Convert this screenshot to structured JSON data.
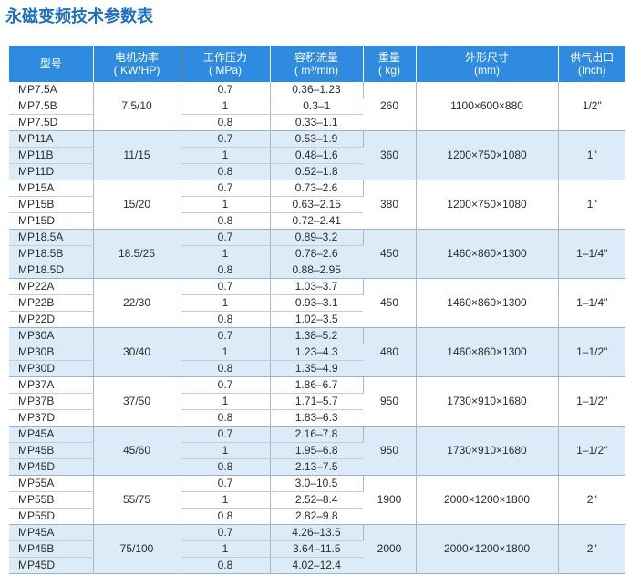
{
  "title": "永磁变频技术参数表",
  "colors": {
    "title": "#1e6fc0",
    "header_bg": "#2e8be0",
    "shade": "#dbebf8"
  },
  "headers": {
    "model": [
      "型号"
    ],
    "power": [
      "电机功率",
      "( KW/HP)"
    ],
    "pressure": [
      "工作压力",
      "( MPa)"
    ],
    "flow": [
      "容积流量",
      "( m³/min)"
    ],
    "weight": [
      "重量",
      "( kg)"
    ],
    "dimension": [
      "外形尺寸",
      "(mm)"
    ],
    "outlet": [
      "供气出口",
      "(Inch)"
    ]
  },
  "groups": [
    {
      "power": "7.5/10",
      "weight": "260",
      "dimension": "1100×600×880",
      "outlet": "1/2\"",
      "shaded": false,
      "rows": [
        {
          "model": "MP7.5A",
          "pressure": "0.7",
          "flow": "0.36–1.23"
        },
        {
          "model": "MP7.5B",
          "pressure": "1",
          "flow": "0.3–1"
        },
        {
          "model": "MP7.5D",
          "pressure": "0.8",
          "flow": "0.33–1.1"
        }
      ]
    },
    {
      "power": "11/15",
      "weight": "360",
      "dimension": "1200×750×1080",
      "outlet": "1\"",
      "shaded": true,
      "rows": [
        {
          "model": "MP11A",
          "pressure": "0.7",
          "flow": "0.53–1.9"
        },
        {
          "model": "MP11B",
          "pressure": "1",
          "flow": "0.48–1.6"
        },
        {
          "model": "MP11D",
          "pressure": "0.8",
          "flow": "0.52–1.8"
        }
      ]
    },
    {
      "power": "15/20",
      "weight": "380",
      "dimension": "1200×750×1080",
      "outlet": "1\"",
      "shaded": false,
      "rows": [
        {
          "model": "MP15A",
          "pressure": "0.7",
          "flow": "0.73–2.6"
        },
        {
          "model": "MP15B",
          "pressure": "1",
          "flow": "0.63–2.15"
        },
        {
          "model": "MP15D",
          "pressure": "0.8",
          "flow": "0.72–2.41"
        }
      ]
    },
    {
      "power": "18.5/25",
      "weight": "450",
      "dimension": "1460×860×1300",
      "outlet": "1–1/4\"",
      "shaded": true,
      "rows": [
        {
          "model": "MP18.5A",
          "pressure": "0.7",
          "flow": "0.89–3.2"
        },
        {
          "model": "MP18.5B",
          "pressure": "1",
          "flow": "0.78–2.6"
        },
        {
          "model": "MP18.5D",
          "pressure": "0.8",
          "flow": "0.88–2.95"
        }
      ]
    },
    {
      "power": "22/30",
      "weight": "450",
      "dimension": "1460×860×1300",
      "outlet": "1–1/4\"",
      "shaded": false,
      "rows": [
        {
          "model": "MP22A",
          "pressure": "0.7",
          "flow": "1.03–3.7"
        },
        {
          "model": "MP22B",
          "pressure": "1",
          "flow": "0.93–3.1"
        },
        {
          "model": "MP22D",
          "pressure": "0.8",
          "flow": "1.02–3.5"
        }
      ]
    },
    {
      "power": "30/40",
      "weight": "480",
      "dimension": "1460×860×1300",
      "outlet": "1–1/2\"",
      "shaded": true,
      "rows": [
        {
          "model": "MP30A",
          "pressure": "0.7",
          "flow": "1.38–5.2"
        },
        {
          "model": "MP30B",
          "pressure": "1",
          "flow": "1.23–4.3"
        },
        {
          "model": "MP30D",
          "pressure": "0.8",
          "flow": "1.35–4.9"
        }
      ]
    },
    {
      "power": "37/50",
      "weight": "950",
      "dimension": "1730×910×1680",
      "outlet": "1–1/2\"",
      "shaded": false,
      "rows": [
        {
          "model": "MP37A",
          "pressure": "0.7",
          "flow": "1.86–6.7"
        },
        {
          "model": "MP37B",
          "pressure": "1",
          "flow": "1.71–5.7"
        },
        {
          "model": "MP37D",
          "pressure": "0.8",
          "flow": "1.83–6.3"
        }
      ]
    },
    {
      "power": "45/60",
      "weight": "950",
      "dimension": "1730×910×1680",
      "outlet": "1–1/2\"",
      "shaded": true,
      "rows": [
        {
          "model": "MP45A",
          "pressure": "0.7",
          "flow": "2.16–7.8"
        },
        {
          "model": "MP45B",
          "pressure": "1",
          "flow": "1.95–6.8"
        },
        {
          "model": "MP45D",
          "pressure": "0.8",
          "flow": "2.13–7.5"
        }
      ]
    },
    {
      "power": "55/75",
      "weight": "1900",
      "dimension": "2000×1200×1800",
      "outlet": "2\"",
      "shaded": false,
      "rows": [
        {
          "model": "MP55A",
          "pressure": "0.7",
          "flow": "3.0–10.5"
        },
        {
          "model": "MP55B",
          "pressure": "1",
          "flow": "2.52–8.4"
        },
        {
          "model": "MP55D",
          "pressure": "0.8",
          "flow": "2.82–9.8"
        }
      ]
    },
    {
      "power": "75/100",
      "weight": "2000",
      "dimension": "2000×1200×1800",
      "outlet": "2\"",
      "shaded": true,
      "rows": [
        {
          "model": "MP45A",
          "pressure": "0.7",
          "flow": "4.26–13.5"
        },
        {
          "model": "MP45B",
          "pressure": "1",
          "flow": "3.64–11.5"
        },
        {
          "model": "MP45D",
          "pressure": "0.8",
          "flow": "4.02–12.4"
        }
      ]
    }
  ]
}
